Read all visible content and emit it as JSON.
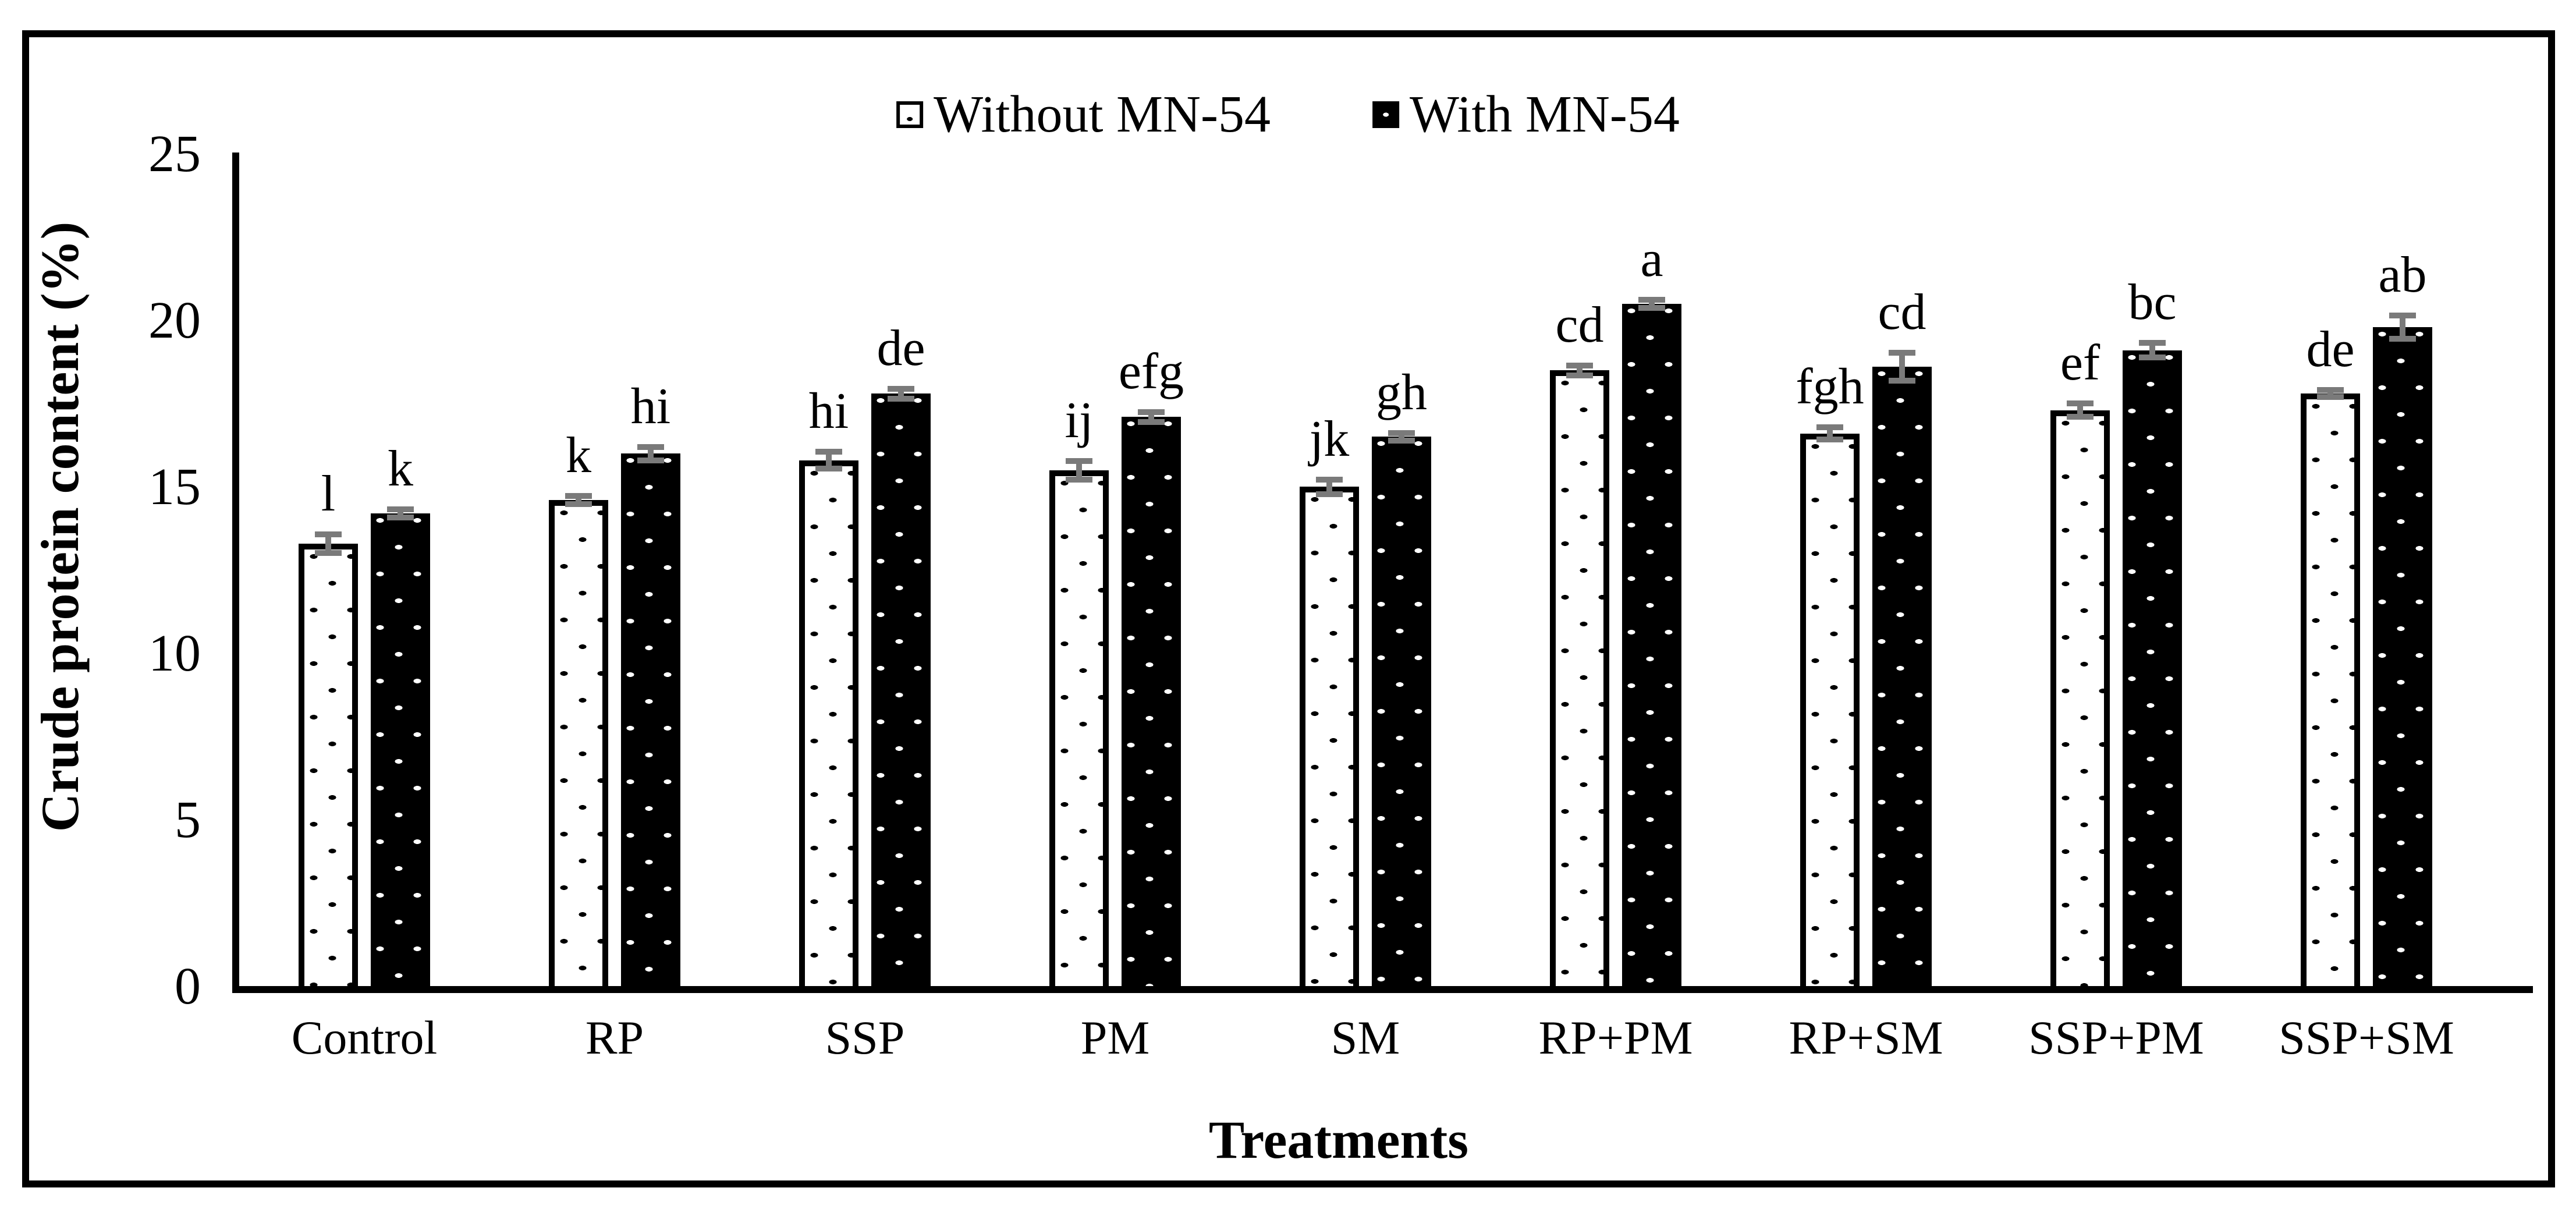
{
  "figure": {
    "background_color": "#ffffff",
    "border_color": "#000000",
    "error_bar_color": "#7a7a7a",
    "bar_fill_without": "#ffffff",
    "bar_fill_with": "#000000"
  },
  "legend": {
    "without_label": "Without MN-54",
    "with_label": "With MN-54"
  },
  "axes": {
    "y_label": "Crude protein content (%)",
    "x_label": "Treatments",
    "y_ticks": [
      0,
      5,
      10,
      15,
      20,
      25
    ],
    "ylim": [
      0,
      25
    ]
  },
  "chart_data": {
    "type": "bar",
    "title": "",
    "xlabel": "Treatments",
    "ylabel": "Crude protein content (%)",
    "ylim": [
      0,
      25
    ],
    "grid": false,
    "legend_position": "top-center",
    "categories": [
      "Control",
      "RP",
      "SSP",
      "PM",
      "SM",
      "RP+PM",
      "RP+SM",
      "SSP+PM",
      "SSP+SM"
    ],
    "series": [
      {
        "name": "Without MN-54",
        "values": [
          13.4,
          14.7,
          15.9,
          15.6,
          15.1,
          18.6,
          16.7,
          17.4,
          17.9
        ],
        "errors": [
          0.28,
          0.12,
          0.25,
          0.28,
          0.22,
          0.15,
          0.18,
          0.2,
          0.1
        ],
        "letters": [
          "l",
          "k",
          "hi",
          "ij",
          "jk",
          "cd",
          "fgh",
          "ef",
          "de"
        ],
        "fill": "#ffffff",
        "pattern_dot": "#000000"
      },
      {
        "name": "With MN-54",
        "values": [
          14.3,
          16.1,
          17.9,
          17.2,
          16.6,
          20.6,
          18.7,
          19.2,
          19.9
        ],
        "errors": [
          0.12,
          0.2,
          0.15,
          0.15,
          0.12,
          0.12,
          0.42,
          0.22,
          0.35
        ],
        "letters": [
          "k",
          "hi",
          "de",
          "efg",
          "gh",
          "a",
          "cd",
          "bc",
          "ab"
        ],
        "fill": "#000000",
        "pattern_dot": "#ffffff"
      }
    ]
  }
}
